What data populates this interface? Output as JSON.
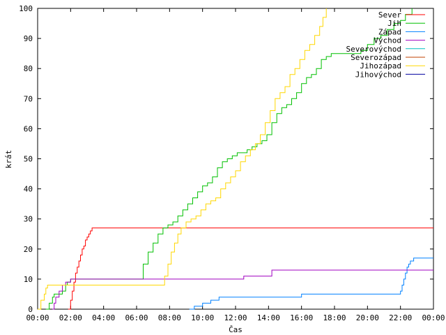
{
  "chart_data": {
    "type": "line",
    "title": "",
    "xlabel": "Čas",
    "ylabel": "krát",
    "xlim": [
      0,
      24
    ],
    "ylim": [
      0,
      100
    ],
    "grid": false,
    "legend_position": "top-right",
    "x_ticks": [
      "00:00",
      "02:00",
      "04:00",
      "06:00",
      "08:00",
      "10:00",
      "12:00",
      "14:00",
      "16:00",
      "18:00",
      "20:00",
      "22:00",
      "00:00"
    ],
    "y_ticks": [
      "0",
      "10",
      "20",
      "30",
      "40",
      "50",
      "60",
      "70",
      "80",
      "90",
      "100"
    ],
    "series": [
      {
        "name": "Sever",
        "color": "#ff0000",
        "step": true,
        "x": [
          1.85,
          2.0,
          2.1,
          2.2,
          2.3,
          2.4,
          2.5,
          2.6,
          2.7,
          2.8,
          2.9,
          3.0,
          3.1,
          3.2,
          3.3,
          24.0
        ],
        "y": [
          0,
          3,
          6,
          9,
          12,
          14,
          16,
          18,
          20,
          21,
          23,
          24,
          25,
          26,
          27,
          27
        ]
      },
      {
        "name": "Jih",
        "color": "#00c000",
        "step": true,
        "x": [
          0.5,
          0.7,
          0.9,
          1.0,
          1.1,
          1.3,
          1.5,
          1.7,
          1.8,
          2.0,
          6.1,
          6.4,
          6.7,
          7.0,
          7.3,
          7.6,
          7.9,
          8.2,
          8.5,
          8.8,
          9.1,
          9.4,
          9.7,
          10.0,
          10.3,
          10.6,
          10.9,
          11.2,
          11.5,
          11.8,
          12.1,
          12.4,
          12.7,
          13.0,
          13.3,
          13.6,
          13.9,
          14.2,
          14.5,
          14.8,
          15.1,
          15.4,
          15.7,
          16.0,
          16.3,
          16.6,
          16.9,
          17.2,
          17.5,
          17.8,
          18.5,
          19.2,
          19.6,
          20.0,
          20.4,
          20.8,
          21.2,
          21.6,
          22.0,
          22.3,
          22.7
        ],
        "y": [
          0,
          2,
          4,
          5,
          5,
          5,
          6,
          8,
          9,
          10,
          10,
          15,
          19,
          22,
          25,
          27,
          28,
          29,
          31,
          33,
          35,
          37,
          39,
          41,
          42,
          44,
          47,
          49,
          50,
          51,
          52,
          52,
          53,
          54,
          55,
          56,
          58,
          62,
          65,
          67,
          68,
          70,
          72,
          75,
          77,
          78,
          80,
          83,
          84,
          85,
          85,
          85,
          86,
          88,
          90,
          91,
          93,
          95,
          96,
          98,
          100
        ]
      },
      {
        "name": "Západ",
        "color": "#0080ff",
        "step": true,
        "x": [
          9.2,
          9.5,
          10.0,
          10.5,
          11.0,
          12.0,
          13.0,
          14.0,
          15.0,
          16.0,
          17.0,
          18.0,
          19.0,
          20.0,
          21.0,
          21.8,
          22.0,
          22.1,
          22.2,
          22.3,
          22.4,
          22.5,
          22.6,
          22.8,
          24.0
        ],
        "y": [
          0,
          1,
          2,
          3,
          4,
          4,
          4,
          4,
          4,
          5,
          5,
          5,
          5,
          5,
          5,
          5,
          6,
          8,
          10,
          12,
          14,
          15,
          16,
          17,
          17
        ]
      },
      {
        "name": "Východ",
        "color": "#a000c0",
        "step": true,
        "x": [
          0.9,
          1.0,
          1.1,
          1.3,
          1.5,
          1.7,
          2.0,
          4.0,
          6.0,
          8.0,
          10.0,
          12.0,
          12.5,
          14.0,
          14.2,
          16.0,
          18.0,
          20.0,
          22.0,
          22.5,
          24.0
        ],
        "y": [
          0,
          2,
          4,
          6,
          8,
          9,
          10,
          10,
          10,
          10,
          10,
          10,
          11,
          11,
          13,
          13,
          13,
          13,
          13,
          13,
          13
        ]
      },
      {
        "name": "Severovýchod",
        "color": "#00c0c0",
        "step": true,
        "x": [],
        "y": []
      },
      {
        "name": "Severozápad",
        "color": "#c04000",
        "step": true,
        "x": [],
        "y": []
      },
      {
        "name": "Jihozápad",
        "color": "#ffd700",
        "step": true,
        "x": [
          0.0,
          0.2,
          0.4,
          0.5,
          0.6,
          2.0,
          4.0,
          6.0,
          7.0,
          7.5,
          7.7,
          7.9,
          8.1,
          8.3,
          8.5,
          8.7,
          9.0,
          9.3,
          9.6,
          9.9,
          10.2,
          10.5,
          10.8,
          11.1,
          11.4,
          11.7,
          12.0,
          12.3,
          12.6,
          12.9,
          13.2,
          13.5,
          13.8,
          14.1,
          14.4,
          14.7,
          15.0,
          15.3,
          15.6,
          15.9,
          16.2,
          16.5,
          16.8,
          17.1,
          17.3,
          17.5
        ],
        "y": [
          0,
          3,
          5,
          7,
          8,
          8,
          8,
          8,
          8,
          8,
          11,
          15,
          19,
          22,
          25,
          27,
          29,
          30,
          31,
          33,
          35,
          36,
          37,
          40,
          42,
          44,
          46,
          49,
          51,
          53,
          55,
          58,
          62,
          66,
          70,
          72,
          74,
          78,
          80,
          83,
          86,
          88,
          91,
          94,
          97,
          100
        ]
      },
      {
        "name": "Jihovýchod",
        "color": "#0000a0",
        "step": true,
        "x": [],
        "y": []
      }
    ]
  }
}
